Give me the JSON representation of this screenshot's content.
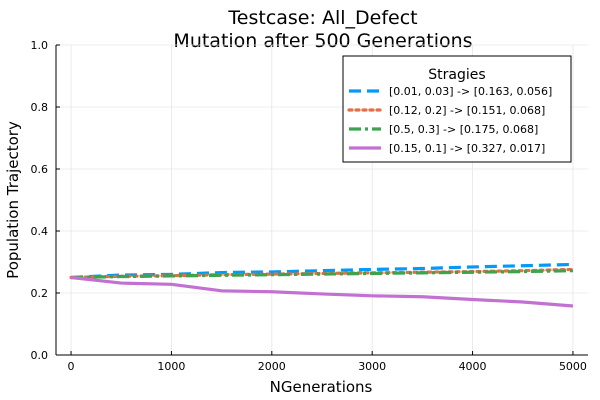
{
  "chart_data": {
    "type": "line",
    "title": "Testcase: All_Defect",
    "subtitle": "Mutation after 500 Generations",
    "xlabel": "NGenerations",
    "ylabel": "Population Trajectory",
    "xlim": [
      -150,
      5150
    ],
    "ylim": [
      0,
      1
    ],
    "xticks": [
      0,
      1000,
      2000,
      3000,
      4000,
      5000
    ],
    "yticks": [
      0.0,
      0.2,
      0.4,
      0.6,
      0.8,
      1.0
    ],
    "xtick_labels": [
      "0",
      "1000",
      "2000",
      "3000",
      "4000",
      "5000"
    ],
    "ytick_labels": [
      "0.0",
      "0.2",
      "0.4",
      "0.6",
      "0.8",
      "1.0"
    ],
    "grid": true,
    "legend_title": "Stragies",
    "legend_position": "top-right",
    "x": [
      0,
      500,
      1000,
      1500,
      2000,
      2500,
      3000,
      3500,
      4000,
      4500,
      5000
    ],
    "series": [
      {
        "name": "[0.01, 0.03] -> [0.163, 0.056]",
        "color": "#009af9",
        "dash": "dash",
        "values": [
          0.25,
          0.258,
          0.26,
          0.266,
          0.268,
          0.272,
          0.276,
          0.279,
          0.284,
          0.288,
          0.292
        ]
      },
      {
        "name": "[0.12, 0.2] -> [0.151, 0.068]",
        "color": "#e26f46",
        "dash": "dot",
        "values": [
          0.25,
          0.254,
          0.256,
          0.259,
          0.261,
          0.263,
          0.265,
          0.267,
          0.269,
          0.272,
          0.276
        ]
      },
      {
        "name": "[0.5, 0.3] -> [0.175, 0.068]",
        "color": "#3da44d",
        "dash": "dashdot",
        "values": [
          0.25,
          0.253,
          0.255,
          0.257,
          0.259,
          0.261,
          0.263,
          0.265,
          0.267,
          0.269,
          0.272
        ]
      },
      {
        "name": "[0.15, 0.1] -> [0.327, 0.017]",
        "color": "#c271d2",
        "dash": "solid",
        "values": [
          0.25,
          0.232,
          0.228,
          0.207,
          0.204,
          0.197,
          0.191,
          0.188,
          0.179,
          0.171,
          0.158
        ]
      }
    ]
  }
}
